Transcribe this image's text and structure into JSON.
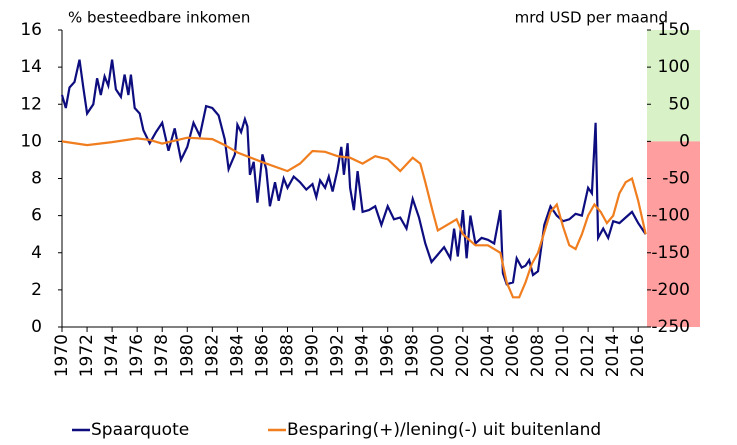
{
  "chart_data": {
    "type": "line",
    "ylabel": "% besteedbare inkomen",
    "y2label": "mrd USD per maand",
    "xlim": [
      1970,
      2016.7
    ],
    "xticks": [
      1970,
      1972,
      1974,
      1976,
      1978,
      1980,
      1982,
      1984,
      1986,
      1988,
      1990,
      1992,
      1994,
      1996,
      1998,
      2000,
      2002,
      2004,
      2006,
      2008,
      2010,
      2012,
      2014,
      2016
    ],
    "ylim": [
      0,
      16
    ],
    "yticks": [
      0,
      2,
      4,
      6,
      8,
      10,
      12,
      14,
      16
    ],
    "y2lim": [
      -250,
      150
    ],
    "y2ticks": [
      -250,
      -200,
      -150,
      -100,
      -50,
      0,
      50,
      100,
      150
    ],
    "y2_shading": {
      "positive": "#d9f1c6",
      "negative": "#ff9e9e"
    },
    "legend": "bottom",
    "series": [
      {
        "name": "Spaarquote",
        "color": "#0d0d80",
        "axis": "y",
        "x": [
          1970,
          1970.3,
          1970.6,
          1971,
          1971.4,
          1971.7,
          1972,
          1972.5,
          1972.8,
          1973.1,
          1973.4,
          1973.7,
          1974,
          1974.3,
          1974.7,
          1975,
          1975.3,
          1975.5,
          1975.8,
          1976.2,
          1976.5,
          1977,
          1977.5,
          1978,
          1978.5,
          1979,
          1979.5,
          1980,
          1980.5,
          1981,
          1981.5,
          1982,
          1982.5,
          1983,
          1983.3,
          1983.8,
          1984,
          1984.3,
          1984.6,
          1984.8,
          1985,
          1985.3,
          1985.6,
          1986,
          1986.3,
          1986.6,
          1987,
          1987.3,
          1987.7,
          1988,
          1988.5,
          1989,
          1989.5,
          1990,
          1990.3,
          1990.6,
          1991,
          1991.3,
          1991.6,
          1992,
          1992.3,
          1992.5,
          1992.8,
          1993,
          1993.3,
          1993.6,
          1994,
          1994.5,
          1995,
          1995.5,
          1996,
          1996.5,
          1997,
          1997.5,
          1998,
          1998.5,
          1999,
          1999.5,
          2000,
          2000.5,
          2001,
          2001.3,
          2001.6,
          2002,
          2002.3,
          2002.6,
          2003,
          2003.5,
          2004,
          2004.5,
          2005,
          2005.2,
          2005.5,
          2006,
          2006.3,
          2006.7,
          2007,
          2007.3,
          2007.6,
          2008,
          2008.5,
          2009,
          2009.5,
          2010,
          2010.5,
          2011,
          2011.5,
          2012,
          2012.3,
          2012.6,
          2012.8,
          2013.2,
          2013.6,
          2014,
          2014.5,
          2015,
          2015.5,
          2016,
          2016.6
        ],
        "values": [
          12.5,
          11.8,
          12.9,
          13.2,
          14.4,
          12.9,
          11.5,
          12.0,
          13.4,
          12.5,
          13.5,
          13.0,
          14.4,
          12.8,
          12.4,
          13.6,
          12.5,
          13.6,
          11.8,
          11.5,
          10.6,
          9.9,
          10.5,
          11.0,
          9.5,
          10.7,
          9.0,
          9.7,
          11.0,
          10.3,
          11.9,
          11.8,
          11.4,
          10.1,
          8.5,
          9.3,
          10.9,
          10.5,
          11.2,
          10.8,
          8.2,
          8.9,
          6.7,
          9.3,
          8.5,
          6.5,
          7.8,
          6.8,
          8.0,
          7.5,
          8.1,
          7.8,
          7.4,
          7.7,
          7.0,
          7.9,
          7.5,
          8.1,
          7.3,
          8.5,
          9.7,
          8.2,
          9.9,
          7.5,
          6.3,
          8.4,
          6.2,
          6.3,
          6.5,
          5.5,
          6.5,
          5.8,
          5.9,
          5.3,
          6.9,
          5.9,
          4.5,
          3.5,
          3.9,
          4.3,
          3.7,
          5.3,
          3.8,
          6.3,
          3.7,
          6.0,
          4.5,
          4.8,
          4.7,
          4.5,
          6.3,
          2.9,
          2.3,
          2.4,
          3.7,
          3.2,
          3.3,
          3.6,
          2.8,
          3.0,
          5.5,
          6.5,
          6.0,
          5.7,
          5.8,
          6.1,
          6.0,
          7.5,
          7.2,
          11.0,
          4.8,
          5.3,
          4.8,
          5.7,
          5.6,
          5.9,
          6.2,
          5.6,
          5.0
        ]
      },
      {
        "name": "Besparing(+)/lening(-) uit buitenland",
        "color": "#f07d1e",
        "axis": "y2",
        "x": [
          1970,
          1972,
          1974,
          1976,
          1977,
          1978,
          1980,
          1982,
          1983,
          1984,
          1986,
          1988,
          1989,
          1990,
          1991,
          1992,
          1993,
          1994,
          1995,
          1996,
          1997,
          1998,
          1998.6,
          1999,
          1999.6,
          2000,
          2001,
          2001.5,
          2002,
          2003,
          2004,
          2005,
          2005.5,
          2006,
          2006.5,
          2007,
          2007.5,
          2008,
          2009,
          2009.5,
          2010,
          2010.5,
          2011,
          2011.5,
          2012,
          2012.5,
          2013,
          2013.5,
          2014,
          2014.5,
          2015,
          2015.5,
          2016,
          2016.6
        ],
        "values": [
          0,
          -5,
          -1,
          4,
          2,
          -3,
          5,
          3,
          -5,
          -15,
          -28,
          -40,
          -30,
          -13,
          -14,
          -20,
          -22,
          -30,
          -20,
          -24,
          -40,
          -22,
          -30,
          -55,
          -95,
          -120,
          -110,
          -105,
          -125,
          -140,
          -140,
          -150,
          -190,
          -210,
          -210,
          -190,
          -165,
          -150,
          -95,
          -85,
          -115,
          -140,
          -145,
          -125,
          -100,
          -85,
          -95,
          -110,
          -100,
          -70,
          -55,
          -50,
          -80,
          -125
        ]
      }
    ]
  }
}
